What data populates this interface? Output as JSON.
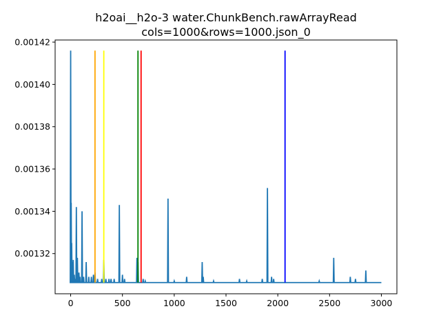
{
  "chart_data": {
    "type": "line",
    "title": "h2oai__h2o-3 water.ChunkBench.rawArrayRead",
    "subtitle": "cols=1000&rows=1000.json_0",
    "xlabel": "",
    "ylabel": "",
    "xlim": [
      -150,
      3150
    ],
    "ylim": [
      0.001301,
      0.001421
    ],
    "x_ticks": [
      0,
      500,
      1000,
      1500,
      2000,
      2500,
      3000
    ],
    "x_tick_labels": [
      "0",
      "500",
      "1000",
      "1500",
      "2000",
      "2500",
      "3000"
    ],
    "y_ticks": [
      0.00132,
      0.00134,
      0.00136,
      0.00138,
      0.0014,
      0.00142
    ],
    "y_tick_labels": [
      "0.00132",
      "0.00134",
      "0.00136",
      "0.00138",
      "0.00140",
      "0.00142"
    ],
    "grid": false,
    "series": [
      {
        "color": "#1f77b4",
        "baseline": 0.0013063,
        "x_max": 3000,
        "spikes": [
          [
            0,
            0.001416
          ],
          [
            5,
            0.001344
          ],
          [
            10,
            0.001325
          ],
          [
            15,
            0.001316
          ],
          [
            25,
            0.001317
          ],
          [
            35,
            0.00131
          ],
          [
            45,
            0.001308
          ],
          [
            55,
            0.001342
          ],
          [
            65,
            0.001318
          ],
          [
            80,
            0.001311
          ],
          [
            90,
            0.001309
          ],
          [
            110,
            0.00134
          ],
          [
            125,
            0.001309
          ],
          [
            150,
            0.001316
          ],
          [
            175,
            0.001309
          ],
          [
            200,
            0.001309
          ],
          [
            220,
            0.00131
          ],
          [
            235,
            0.001311
          ],
          [
            260,
            0.001308
          ],
          [
            300,
            0.001308
          ],
          [
            320,
            0.001317
          ],
          [
            340,
            0.001308
          ],
          [
            370,
            0.001308
          ],
          [
            390,
            0.001308
          ],
          [
            420,
            0.001308
          ],
          [
            470,
            0.001343
          ],
          [
            500,
            0.00131
          ],
          [
            520,
            0.001308
          ],
          [
            640,
            0.001318
          ],
          [
            650,
            0.001316
          ],
          [
            700,
            0.001308
          ],
          [
            720,
            0.001307
          ],
          [
            940,
            0.001346
          ],
          [
            1000,
            0.001307
          ],
          [
            1120,
            0.001309
          ],
          [
            1270,
            0.001316
          ],
          [
            1280,
            0.001309
          ],
          [
            1380,
            0.001307
          ],
          [
            1630,
            0.001308
          ],
          [
            1700,
            0.001307
          ],
          [
            1850,
            0.001308
          ],
          [
            1900,
            0.001351
          ],
          [
            1940,
            0.001309
          ],
          [
            1960,
            0.001308
          ],
          [
            2400,
            0.001307
          ],
          [
            2540,
            0.001318
          ],
          [
            2700,
            0.001309
          ],
          [
            2750,
            0.001308
          ],
          [
            2850,
            0.001312
          ]
        ]
      }
    ],
    "vlines": [
      {
        "x": 235,
        "color": "#ffa500"
      },
      {
        "x": 320,
        "color": "#ffff00"
      },
      {
        "x": 650,
        "color": "#008000"
      },
      {
        "x": 680,
        "color": "#ff0000"
      },
      {
        "x": 2070,
        "color": "#0000ff"
      }
    ]
  }
}
